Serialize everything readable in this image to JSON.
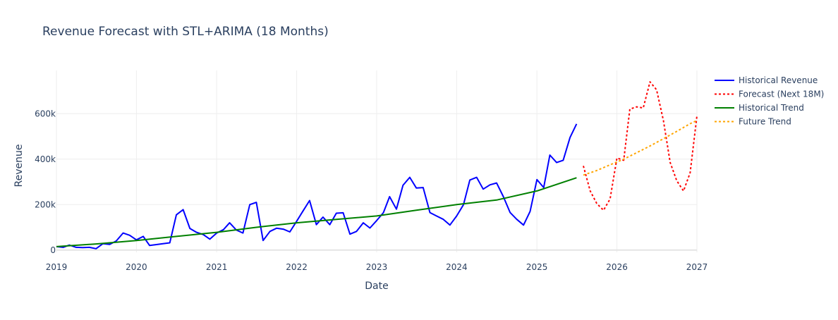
{
  "chart_data": {
    "type": "line",
    "title": "Revenue Forecast with STL+ARIMA (18 Months)",
    "xlabel": "Date",
    "ylabel": "Revenue",
    "xlim": [
      "2019-01-01",
      "2027-01-01"
    ],
    "ylim": [
      -10000,
      790000
    ],
    "x_ticks": [
      {
        "value": "2019-01-01",
        "label": "2019"
      },
      {
        "value": "2020-01-01",
        "label": "2020"
      },
      {
        "value": "2021-01-01",
        "label": "2021"
      },
      {
        "value": "2022-01-01",
        "label": "2022"
      },
      {
        "value": "2023-01-01",
        "label": "2023"
      },
      {
        "value": "2024-01-01",
        "label": "2024"
      },
      {
        "value": "2025-01-01",
        "label": "2025"
      },
      {
        "value": "2026-01-01",
        "label": "2026"
      },
      {
        "value": "2027-01-01",
        "label": "2027"
      }
    ],
    "y_ticks": [
      {
        "value": 0,
        "label": "0"
      },
      {
        "value": 200000,
        "label": "200k"
      },
      {
        "value": 400000,
        "label": "400k"
      },
      {
        "value": 600000,
        "label": "600k"
      }
    ],
    "grid": true,
    "legend_position": "top-right",
    "series": [
      {
        "name": "Historical Revenue",
        "color": "#0000ff",
        "dash": "solid",
        "x": [
          "2019-01-01",
          "2019-02-01",
          "2019-03-01",
          "2019-04-01",
          "2019-05-01",
          "2019-06-01",
          "2019-07-01",
          "2019-08-01",
          "2019-09-01",
          "2019-10-01",
          "2019-11-01",
          "2019-12-01",
          "2020-01-01",
          "2020-02-01",
          "2020-03-01",
          "2020-04-01",
          "2020-05-01",
          "2020-06-01",
          "2020-07-01",
          "2020-08-01",
          "2020-09-01",
          "2020-10-01",
          "2020-11-01",
          "2020-12-01",
          "2021-01-01",
          "2021-02-01",
          "2021-03-01",
          "2021-04-01",
          "2021-05-01",
          "2021-06-01",
          "2021-07-01",
          "2021-08-01",
          "2021-09-01",
          "2021-10-01",
          "2021-11-01",
          "2021-12-01",
          "2022-01-01",
          "2022-02-01",
          "2022-03-01",
          "2022-04-01",
          "2022-05-01",
          "2022-06-01",
          "2022-07-01",
          "2022-08-01",
          "2022-09-01",
          "2022-10-01",
          "2022-11-01",
          "2022-12-01",
          "2023-01-01",
          "2023-02-01",
          "2023-03-01",
          "2023-04-01",
          "2023-05-01",
          "2023-06-01",
          "2023-07-01",
          "2023-08-01",
          "2023-09-01",
          "2023-10-01",
          "2023-11-01",
          "2023-12-01",
          "2024-01-01",
          "2024-02-01",
          "2024-03-01",
          "2024-04-01",
          "2024-05-01",
          "2024-06-01",
          "2024-07-01",
          "2024-08-01",
          "2024-09-01",
          "2024-10-01",
          "2024-11-01",
          "2024-12-01",
          "2025-01-01",
          "2025-02-01",
          "2025-03-01",
          "2025-04-01",
          "2025-05-01",
          "2025-06-01",
          "2025-07-01"
        ],
        "values": [
          15000,
          12000,
          22000,
          12000,
          11000,
          12000,
          6000,
          28000,
          25000,
          40000,
          75000,
          65000,
          45000,
          60000,
          20000,
          24000,
          28000,
          32000,
          155000,
          178000,
          95000,
          78000,
          68000,
          48000,
          75000,
          90000,
          120000,
          88000,
          75000,
          200000,
          210000,
          42000,
          82000,
          96000,
          92000,
          80000,
          127000,
          175000,
          218000,
          112000,
          145000,
          112000,
          162000,
          164000,
          70000,
          82000,
          120000,
          97000,
          130000,
          165000,
          235000,
          180000,
          285000,
          320000,
          273000,
          275000,
          165000,
          150000,
          135000,
          110000,
          150000,
          200000,
          308000,
          320000,
          268000,
          287000,
          295000,
          235000,
          165000,
          135000,
          110000,
          170000,
          310000,
          275000,
          418000,
          385000,
          395000,
          495000,
          555000
        ]
      },
      {
        "name": "Forecast (Next 18M)",
        "color": "#ff0000",
        "dash": "dot",
        "x": [
          "2025-08-01",
          "2025-09-01",
          "2025-10-01",
          "2025-11-01",
          "2025-12-01",
          "2026-01-01",
          "2026-02-01",
          "2026-03-01",
          "2026-04-01",
          "2026-05-01",
          "2026-06-01",
          "2026-07-01",
          "2026-08-01",
          "2026-09-01",
          "2026-10-01",
          "2026-11-01",
          "2026-12-01",
          "2027-01-01"
        ],
        "values": [
          370000,
          260000,
          205000,
          175000,
          225000,
          405000,
          395000,
          620000,
          630000,
          625000,
          740000,
          705000,
          570000,
          385000,
          305000,
          260000,
          340000,
          590000
        ]
      },
      {
        "name": "Historical Trend",
        "color": "#008000",
        "dash": "solid",
        "x": [
          "2019-01-01",
          "2019-07-01",
          "2020-01-01",
          "2020-07-01",
          "2021-01-01",
          "2021-07-01",
          "2022-01-01",
          "2022-07-01",
          "2023-01-01",
          "2023-07-01",
          "2024-01-01",
          "2024-07-01",
          "2025-01-01",
          "2025-07-01"
        ],
        "values": [
          15000,
          27000,
          42000,
          60000,
          78000,
          100000,
          120000,
          135000,
          150000,
          175000,
          200000,
          220000,
          260000,
          318000
        ]
      },
      {
        "name": "Future Trend",
        "color": "#ffa500",
        "dash": "dot",
        "x": [
          "2025-08-01",
          "2025-10-01",
          "2025-12-01",
          "2026-02-01",
          "2026-04-01",
          "2026-06-01",
          "2026-08-01",
          "2026-10-01",
          "2026-12-01",
          "2027-01-01"
        ],
        "values": [
          330000,
          350000,
          375000,
          400000,
          428000,
          458000,
          490000,
          522000,
          556000,
          570000
        ]
      }
    ]
  }
}
